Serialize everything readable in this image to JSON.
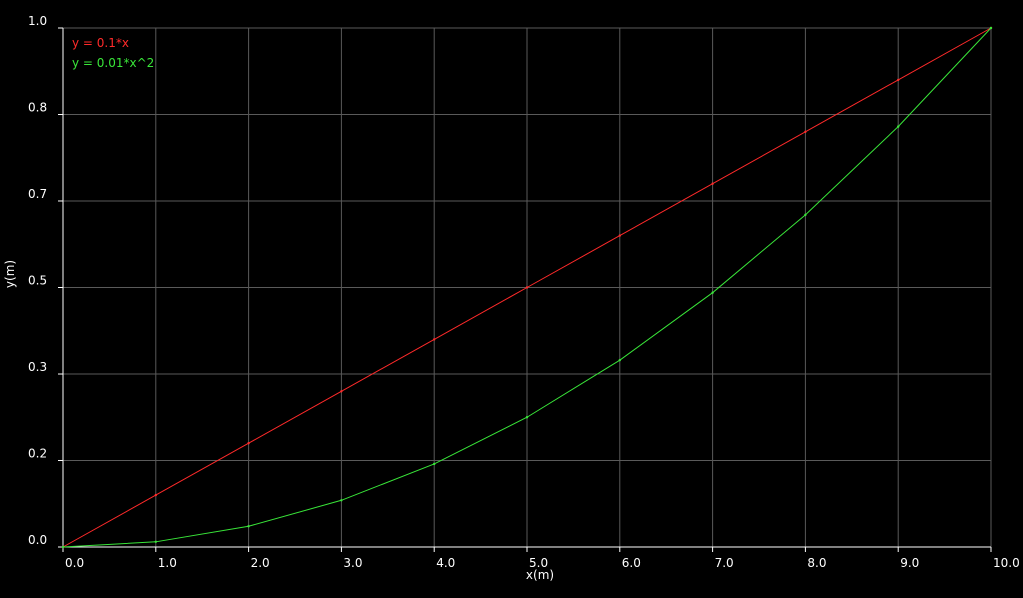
{
  "chart_data": {
    "type": "line",
    "xlabel": "x(m)",
    "ylabel": "y(m)",
    "xlim": [
      0,
      10
    ],
    "ylim": [
      0,
      1
    ],
    "x_ticks": [
      0,
      1,
      2,
      3,
      4,
      5,
      6,
      7,
      8,
      9,
      10
    ],
    "x_tick_labels": [
      "0.0",
      "1.0",
      "2.0",
      "3.0",
      "4.0",
      "5.0",
      "6.0",
      "7.0",
      "8.0",
      "9.0",
      "10.0"
    ],
    "y_ticks": [
      0,
      0.1667,
      0.3333,
      0.5,
      0.6667,
      0.8333,
      1
    ],
    "y_tick_labels": [
      "0.0",
      "0.2",
      "0.3",
      "0.5",
      "0.7",
      "0.8",
      "1.0"
    ],
    "grid": true,
    "legend_position": "top-left",
    "x": [
      0,
      1,
      2,
      3,
      4,
      5,
      6,
      7,
      8,
      9,
      10
    ],
    "series": [
      {
        "name": "y = 0.1*x",
        "color": "#ff2a2a",
        "values": [
          0,
          0.1,
          0.2,
          0.3,
          0.4,
          0.5,
          0.6,
          0.7,
          0.8,
          0.9,
          1.0
        ]
      },
      {
        "name": "y = 0.01*x^2",
        "color": "#39e639",
        "values": [
          0,
          0.01,
          0.04,
          0.09,
          0.16,
          0.25,
          0.36,
          0.49,
          0.64,
          0.81,
          1.0
        ]
      }
    ]
  },
  "colors": {
    "background": "#000000",
    "grid": "#5a5a5a",
    "axis": "#ffffff",
    "text": "#ffffff"
  }
}
